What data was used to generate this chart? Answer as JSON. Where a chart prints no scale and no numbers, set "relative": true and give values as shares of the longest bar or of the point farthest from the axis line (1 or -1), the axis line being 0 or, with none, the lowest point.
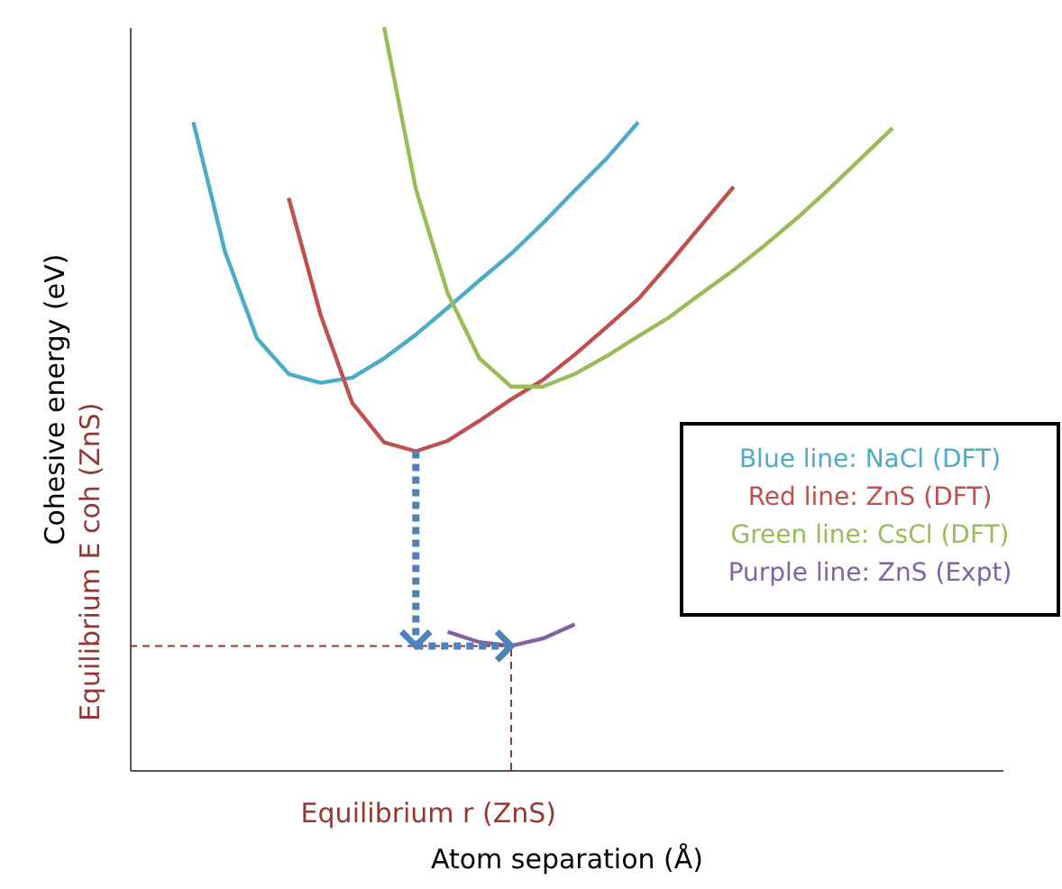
{
  "chart_data": {
    "type": "line",
    "relative": true,
    "xlabel": "Atom separation (Å)",
    "ylabel": "Cohesive energy (eV)",
    "categories": [
      null,
      null,
      null,
      null,
      null,
      null,
      null,
      null,
      null,
      null,
      null,
      null,
      null,
      null,
      null,
      null,
      null,
      null,
      null,
      null,
      null,
      null,
      null,
      null,
      null,
      null,
      null,
      null
    ],
    "tick_labels": false,
    "grid": false,
    "line_style": "solid",
    "marker": "none",
    "series": [
      {
        "name": "Blue line: NaCl (DFT)",
        "color": "#4bacc6",
        "values": [
          null,
          null,
          0.872,
          0.697,
          0.581,
          0.533,
          0.521,
          0.528,
          0.554,
          0.586,
          0.622,
          0.659,
          0.695,
          0.736,
          0.78,
          0.823,
          0.872,
          null,
          null,
          null,
          null,
          null,
          null,
          null,
          null,
          null,
          null,
          null
        ]
      },
      {
        "name": "Red line: ZnS (DFT)",
        "color": "#c0504d",
        "values": [
          null,
          null,
          null,
          null,
          null,
          0.77,
          0.613,
          0.494,
          0.441,
          0.429,
          0.443,
          0.47,
          0.499,
          0.525,
          0.559,
          0.596,
          0.634,
          0.683,
          0.734,
          0.785,
          null,
          null,
          null,
          null,
          null,
          null,
          null,
          null
        ]
      },
      {
        "name": "Green line: CsCl (DFT)",
        "color": "#9bbb59",
        "values": [
          null,
          null,
          null,
          null,
          null,
          null,
          null,
          null,
          1.0,
          0.782,
          0.642,
          0.554,
          0.516,
          0.516,
          0.533,
          0.557,
          0.584,
          0.61,
          0.642,
          0.673,
          0.707,
          0.743,
          0.782,
          0.823,
          0.864,
          null,
          null,
          null
        ]
      },
      {
        "name": "Purple line: ZnS (Expt)",
        "color": "#8064a2",
        "values": [
          null,
          null,
          null,
          null,
          null,
          null,
          null,
          null,
          null,
          null,
          0.186,
          0.172,
          0.167,
          0.177,
          0.196,
          null,
          null,
          null,
          null,
          null,
          null,
          null,
          null,
          null,
          null,
          null,
          null,
          null
        ]
      }
    ],
    "ref_lines": [
      {
        "axis": "y",
        "value": 0.167,
        "label": "Equilibrium E coh (ZnS)",
        "color": "#953735",
        "line_style": "dashed"
      },
      {
        "axis": "x",
        "label": "Equilibrium r (ZnS)",
        "color": "#953735",
        "line_style": "dashed"
      }
    ]
  }
}
